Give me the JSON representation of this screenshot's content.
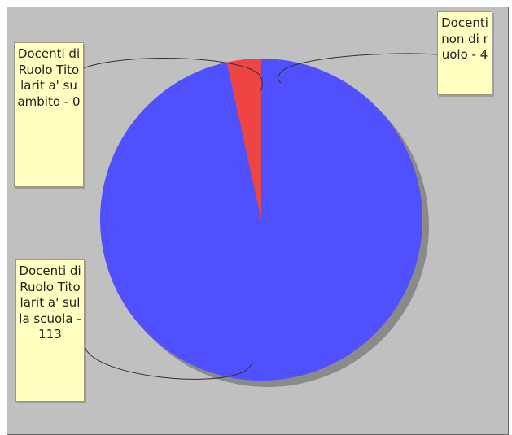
{
  "colors": {
    "background": "#c0c0c0",
    "frame_border": "#666666",
    "label_fill": "#ffffc0",
    "series": [
      "#5050ff",
      "#ee4444",
      "#44aa44"
    ]
  },
  "chart_data": {
    "type": "pie",
    "title": "",
    "slices": [
      {
        "label": "Docenti di Ruolo Titolarità sulla scuola",
        "value": 113,
        "color": "#5050ff",
        "callout": "Docenti di Ruolo Titolarit a' sulla scuola - 113"
      },
      {
        "label": "Docenti non di ruolo",
        "value": 4,
        "color": "#ee4444",
        "callout": "Docenti non di ruolo - 4"
      },
      {
        "label": "Docenti di Ruolo Titolarità su ambito",
        "value": 0,
        "color": "#44aa44",
        "callout": "Docenti di Ruolo Titolarit a' su ambito - 0"
      }
    ],
    "start_angle_deg": 90,
    "direction": "clockwise",
    "legend": "none",
    "label_style": "callout"
  }
}
